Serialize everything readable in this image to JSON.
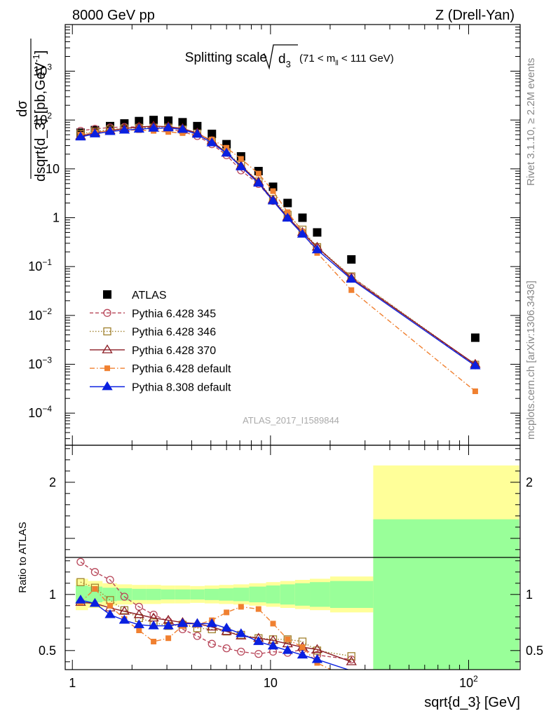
{
  "header": {
    "left": "8000 GeV pp",
    "right": "Z (Drell-Yan)"
  },
  "side_labels": {
    "top": "Rivet 3.1.10, ≥ 2.2M events",
    "bottom": "mcplots.cern.ch [arXiv:1306.3436]"
  },
  "watermark": "ATLAS_2017_I1589844",
  "chart_data": [
    {
      "type": "scatter",
      "panel": "main",
      "title": "Splitting scale",
      "title_symbol": "d",
      "title_symbol_sub": "3",
      "title_range_pre": "(71 < m",
      "title_range_sub": "ll",
      "title_range_post": " < 111 GeV)",
      "ylabel_num": "dσ",
      "ylabel_den": "dsqrt{d_3} [pb,GeV",
      "ylabel_den_sup": "-1",
      "ylabel_den_tail": "]",
      "xlabel": "sqrt{d_3} [GeV]",
      "x_scale": "log",
      "y_scale": "log",
      "xlim": [
        0.92,
        182
      ],
      "ylim": [
        2.2e-05,
        9000
      ],
      "x_ticks": [
        {
          "v": 1,
          "label": "1"
        },
        {
          "v": 10,
          "label": "10"
        },
        {
          "v": 100,
          "label": "10",
          "sup": "2"
        }
      ],
      "y_ticks": [
        {
          "v": 0.0001,
          "base": "10",
          "sup": "−4"
        },
        {
          "v": 0.001,
          "base": "10",
          "sup": "−3"
        },
        {
          "v": 0.01,
          "base": "10",
          "sup": "−2"
        },
        {
          "v": 0.1,
          "base": "10",
          "sup": "−1"
        },
        {
          "v": 1,
          "base": "1",
          "sup": ""
        },
        {
          "v": 10,
          "base": "10",
          "sup": ""
        },
        {
          "v": 100,
          "base": "10",
          "sup": "2"
        },
        {
          "v": 1000,
          "base": "10",
          "sup": "3"
        }
      ],
      "legend_position": "lower-left",
      "series": [
        {
          "name": "ATLAS",
          "color": "#000000",
          "marker": "square",
          "line": "none",
          "x": [
            1.1,
            1.3,
            1.55,
            1.83,
            2.17,
            2.57,
            3.05,
            3.6,
            4.27,
            5.06,
            6.0,
            7.1,
            8.7,
            10.3,
            12.2,
            14.5,
            17.2,
            25.6,
            108
          ],
          "y": [
            55,
            62,
            75,
            85,
            95,
            100,
            97,
            90,
            75,
            52,
            32,
            18,
            9,
            4.3,
            2.0,
            1.0,
            0.5,
            0.14,
            0.0035
          ]
        },
        {
          "name": "Pythia 6.428 345",
          "color": "#b8475a",
          "marker": "circle-open",
          "line": "dashed",
          "x": [
            1.1,
            1.3,
            1.55,
            1.83,
            2.17,
            2.57,
            3.05,
            3.6,
            4.27,
            5.06,
            6.0,
            7.1,
            8.7,
            10.3,
            12.2,
            14.5,
            17.2,
            25.6,
            108
          ],
          "y": [
            60,
            66,
            70,
            72,
            72,
            70,
            66,
            58,
            47,
            32,
            19,
            9.3,
            4.9,
            2.2,
            1.0,
            0.5,
            0.24,
            0.062,
            0.00095
          ]
        },
        {
          "name": "Pythia 6.428 346",
          "color": "#a0812e",
          "marker": "square-open",
          "line": "dotted",
          "x": [
            1.1,
            1.3,
            1.55,
            1.83,
            2.17,
            2.57,
            3.05,
            3.6,
            4.27,
            5.06,
            6.0,
            7.1,
            8.7,
            10.3,
            12.2,
            14.5,
            17.2,
            25.6,
            108
          ],
          "y": [
            52,
            58,
            64,
            67,
            69,
            70,
            70,
            64,
            53,
            36,
            22,
            12,
            5.5,
            2.4,
            1.15,
            0.57,
            0.25,
            0.063,
            0.00098
          ]
        },
        {
          "name": "Pythia 6.428 370",
          "color": "#8b1c24",
          "marker": "triangle-open",
          "line": "solid",
          "x": [
            1.1,
            1.3,
            1.55,
            1.83,
            2.17,
            2.57,
            3.05,
            3.6,
            4.27,
            5.06,
            6.0,
            7.1,
            8.7,
            10.3,
            12.2,
            14.5,
            17.2,
            25.6,
            108
          ],
          "y": [
            47,
            55,
            61,
            67,
            72,
            75,
            73,
            67,
            54,
            37,
            21,
            11.5,
            5.4,
            2.3,
            1.03,
            0.5,
            0.25,
            0.058,
            0.001
          ]
        },
        {
          "name": "Pythia 6.428 default",
          "color": "#f08030",
          "marker": "square",
          "line": "dashdot",
          "x": [
            1.1,
            1.3,
            1.55,
            1.83,
            2.17,
            2.57,
            3.05,
            3.6,
            4.27,
            5.06,
            6.0,
            7.1,
            8.7,
            10.3,
            12.2,
            14.5,
            17.2,
            25.6,
            108
          ],
          "y": [
            50,
            56,
            60,
            62,
            62,
            60,
            57,
            54,
            50,
            40,
            27,
            16,
            8,
            3.5,
            1.3,
            0.52,
            0.19,
            0.033,
            0.00028
          ]
        },
        {
          "name": "Pythia 8.308 default",
          "color": "#0a20e0",
          "marker": "triangle",
          "line": "solid",
          "x": [
            1.1,
            1.3,
            1.55,
            1.83,
            2.17,
            2.57,
            3.05,
            3.6,
            4.27,
            5.06,
            6.0,
            7.1,
            8.7,
            10.3,
            12.2,
            14.5,
            17.2,
            25.6,
            108
          ],
          "y": [
            45,
            52,
            58,
            62,
            65,
            68,
            69,
            64,
            51,
            34,
            21,
            11,
            5.1,
            2.2,
            0.98,
            0.46,
            0.22,
            0.055,
            0.00093
          ]
        }
      ]
    },
    {
      "type": "scatter",
      "panel": "ratio",
      "ylabel": "Ratio to ATLAS",
      "x_scale": "log",
      "ylim": [
        0.33,
        2.33
      ],
      "y_ticks": [
        {
          "v": 0.5,
          "label": "0.5"
        },
        {
          "v": 1,
          "label": "1"
        },
        {
          "v": 2,
          "label": "2"
        }
      ],
      "reference_line": 1,
      "bands": {
        "edges": [
          1.04,
          1.2,
          1.42,
          1.68,
          2.0,
          2.36,
          2.8,
          3.3,
          3.93,
          4.65,
          5.5,
          6.5,
          7.8,
          9.5,
          11.2,
          13.3,
          15.8,
          20,
          33,
          180
        ],
        "outer_color": "#ffff99",
        "inner_color": "#99ff99",
        "outer_half_width": [
          0.14,
          0.12,
          0.1,
          0.09,
          0.085,
          0.085,
          0.08,
          0.08,
          0.075,
          0.08,
          0.085,
          0.09,
          0.1,
          0.11,
          0.12,
          0.13,
          0.14,
          0.16,
          1.15
        ],
        "inner_half_width": [
          0.08,
          0.07,
          0.06,
          0.055,
          0.05,
          0.05,
          0.045,
          0.045,
          0.045,
          0.05,
          0.055,
          0.06,
          0.07,
          0.08,
          0.09,
          0.1,
          0.11,
          0.12,
          0.67
        ]
      },
      "series": [
        {
          "name": "Pythia 6.428 345",
          "x": [
            1.1,
            1.3,
            1.55,
            1.83,
            2.17,
            2.57,
            3.05,
            3.6,
            4.27,
            5.06,
            6.0,
            7.1,
            8.7,
            10.3,
            12.2,
            14.5,
            17.2,
            25.6
          ],
          "y": [
            1.29,
            1.2,
            1.13,
            0.98,
            0.89,
            0.82,
            0.76,
            0.69,
            0.63,
            0.56,
            0.52,
            0.49,
            0.47,
            0.49,
            0.48,
            0.51,
            0.46,
            0.42
          ]
        },
        {
          "name": "Pythia 6.428 346",
          "x": [
            1.1,
            1.3,
            1.55,
            1.83,
            2.17,
            2.57,
            3.05,
            3.6,
            4.27,
            5.06,
            6.0,
            7.1,
            8.7,
            10.3,
            12.2,
            14.5,
            17.2,
            25.6
          ],
          "y": [
            1.11,
            1.06,
            0.95,
            0.86,
            0.79,
            0.75,
            0.72,
            0.73,
            0.7,
            0.69,
            0.67,
            0.64,
            0.61,
            0.6,
            0.6,
            0.58,
            0.5,
            0.45
          ]
        },
        {
          "name": "Pythia 6.428 370",
          "x": [
            1.1,
            1.3,
            1.55,
            1.83,
            2.17,
            2.57,
            3.05,
            3.6,
            4.27,
            5.06,
            6.0,
            7.1,
            8.7,
            10.3,
            12.2,
            14.5,
            17.2,
            25.6
          ],
          "y": [
            0.93,
            0.92,
            0.88,
            0.85,
            0.82,
            0.79,
            0.77,
            0.75,
            0.74,
            0.71,
            0.67,
            0.63,
            0.61,
            0.59,
            0.56,
            0.53,
            0.51,
            0.4
          ]
        },
        {
          "name": "Pythia 6.428 default",
          "x": [
            1.1,
            1.3,
            1.55,
            1.83,
            2.17,
            2.57,
            3.05,
            3.6,
            4.27,
            5.06,
            6.0,
            7.1,
            8.7,
            10.3,
            12.2,
            14.5,
            17.2,
            25.6
          ],
          "y": [
            0.93,
            1.05,
            0.9,
            0.78,
            0.68,
            0.58,
            0.61,
            0.72,
            0.73,
            0.77,
            0.84,
            0.89,
            0.87,
            0.74,
            0.6,
            0.53,
            0.39,
            0.24
          ]
        },
        {
          "name": "Pythia 8.308 default",
          "x": [
            1.1,
            1.3,
            1.55,
            1.83,
            2.17,
            2.57,
            3.05,
            3.6,
            4.27,
            5.06,
            6.0,
            7.1,
            8.7,
            10.3,
            12.2,
            14.5,
            17.2,
            25.6
          ],
          "y": [
            0.95,
            0.92,
            0.82,
            0.77,
            0.73,
            0.72,
            0.72,
            0.74,
            0.74,
            0.74,
            0.7,
            0.65,
            0.58,
            0.54,
            0.5,
            0.46,
            0.42,
            0.32
          ]
        }
      ]
    }
  ]
}
